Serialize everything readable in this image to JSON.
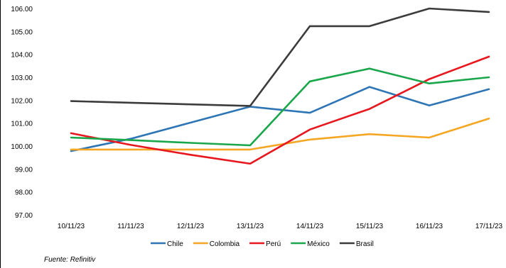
{
  "chart_data": {
    "type": "line",
    "title": "",
    "xlabel": "",
    "ylabel": "",
    "categories": [
      "10/11/23",
      "11/11/23",
      "12/11/23",
      "13/11/23",
      "14/11/23",
      "15/11/23",
      "16/11/23",
      "17/11/23"
    ],
    "ylim": [
      97,
      106
    ],
    "yticks": [
      "97.00",
      "98.00",
      "99.00",
      "100.00",
      "101.00",
      "102.00",
      "103.00",
      "104.00",
      "105.00",
      "106.00"
    ],
    "grid": false,
    "legend_position": "bottom",
    "series": [
      {
        "name": "Chile",
        "color": "#2E75B6",
        "values": [
          99.78,
          100.32,
          101.02,
          101.72,
          101.45,
          102.58,
          101.77,
          102.48
        ]
      },
      {
        "name": "Colombia",
        "color": "#F5A623",
        "values": [
          99.85,
          99.85,
          99.85,
          99.85,
          100.28,
          100.52,
          100.37,
          101.2
        ]
      },
      {
        "name": "Perú",
        "color": "#E8171E",
        "values": [
          100.56,
          100.05,
          99.62,
          99.23,
          100.72,
          101.62,
          102.92,
          103.9
        ]
      },
      {
        "name": "México",
        "color": "#1AA64A",
        "values": [
          100.37,
          100.26,
          100.14,
          100.03,
          102.82,
          103.38,
          102.73,
          103.0
        ]
      },
      {
        "name": "Brasil",
        "color": "#3C3C3C",
        "values": [
          101.96,
          101.89,
          101.82,
          101.75,
          105.23,
          105.23,
          106.0,
          105.85
        ]
      }
    ]
  },
  "source": "Fuente: Refinitiv"
}
